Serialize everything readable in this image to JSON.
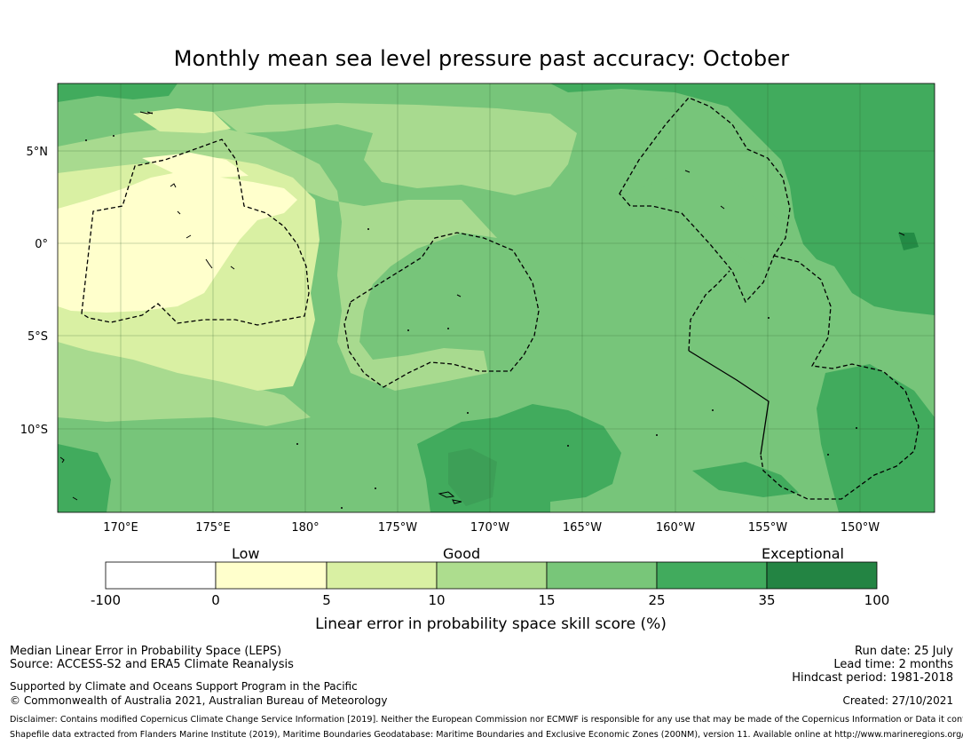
{
  "title": "Monthly mean sea level pressure past accuracy: October",
  "map": {
    "lon_labels": [
      "170°E",
      "175°E",
      "180°",
      "175°W",
      "170°W",
      "165°W",
      "160°W",
      "155°W",
      "150°W"
    ],
    "lat_labels": [
      "5°N",
      "0°",
      "5°S",
      "10°S"
    ],
    "colors": {
      "exceptional": "#238b45",
      "very_high": "#41ab5d",
      "high": "#74c476",
      "good": "#a1d99b",
      "moderate": "#d9f0a3",
      "low": "#ffffcc",
      "boundary_line": "#000000"
    }
  },
  "colorbar": {
    "category_labels": [
      "Low",
      "Good",
      "Exceptional"
    ],
    "ticks": [
      "-100",
      "0",
      "5",
      "10",
      "15",
      "25",
      "35",
      "100"
    ],
    "colors": [
      "#ffffff",
      "#ffffcc",
      "#d9f0a3",
      "#addd8e",
      "#78c679",
      "#41ab5d",
      "#238443"
    ],
    "caption": "Linear error in probability space skill score (%)"
  },
  "footer": {
    "left_line1": "Median Linear Error in Probability Space (LEPS)",
    "left_line2": "Source: ACCESS-S2 and ERA5 Climate Reanalysis",
    "left_line3": "Supported by Climate and Oceans Support Program in the Pacific",
    "left_line4": "© Commonwealth of Australia 2021, Australian Bureau of Meteorology",
    "right_line1": "Run date: 25 July",
    "right_line2": "Lead time: 2 months",
    "right_line3": "Hindcast period: 1981-2018",
    "created": "Created: 27/10/2021",
    "disclaimer": "Disclaimer: Contains modified Copernicus Climate Change Service Information [2019]. Neither the European Commission nor ECMWF is responsible for any use that may be made of the Copernicus Information or Data it contains.",
    "shapefile": "Shapefile data extracted from Flanders Marine Institute (2019), Maritime Boundaries Geodatabase: Maritime Boundaries and Exclusive Economic Zones (200NM), version 11. Available online at http://www.marineregions.org/."
  }
}
